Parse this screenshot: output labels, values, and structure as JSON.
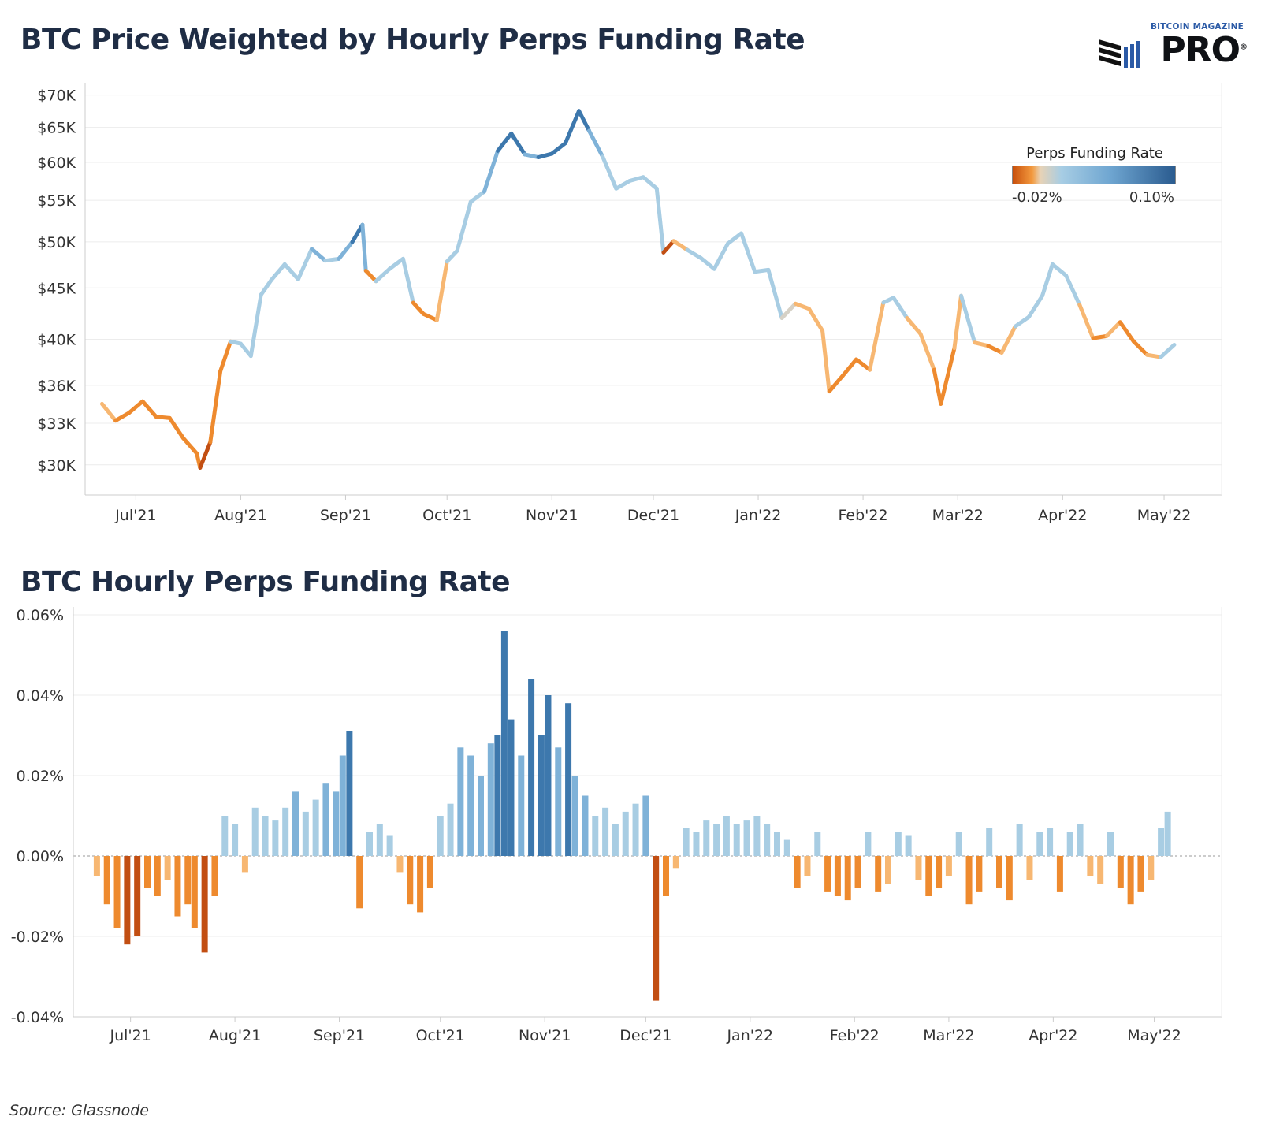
{
  "titles": {
    "top": "BTC Price Weighted by Hourly Perps Funding Rate",
    "bottom": "BTC Hourly Perps Funding Rate"
  },
  "logo": {
    "line1": "BITCOIN MAGAZINE",
    "line2": "PRO",
    "mark": "®"
  },
  "source": "Source: Glassnode",
  "legend": {
    "title": "Perps Funding Rate",
    "min_label": "-0.02%",
    "max_label": "0.10%"
  },
  "colors": {
    "neg_strong": "#c24e12",
    "neg_mid": "#ee8a2e",
    "neg_light": "#f7b772",
    "neutral": "#d6d1c6",
    "pos_light": "#a8cde3",
    "pos_mid": "#7fb2d8",
    "pos_strong": "#3d78ad",
    "grid": "#ececec",
    "axis": "#cccccc"
  },
  "chart_data": [
    {
      "type": "line",
      "title": "BTC Price Weighted by Hourly Perps Funding Rate",
      "color_by": "Perps Funding Rate",
      "scale": "log",
      "x_tick_labels": [
        "Jul'21",
        "Aug'21",
        "Sep'21",
        "Oct'21",
        "Nov'21",
        "Dec'21",
        "Jan'22",
        "Feb'22",
        "Mar'22",
        "Apr'22",
        "May'22"
      ],
      "y_ticks": [
        70000,
        65000,
        60000,
        55000,
        50000,
        45000,
        40000,
        36000,
        33000,
        30000
      ],
      "y_tick_labels": [
        "$70K",
        "$65K",
        "$60K",
        "$55K",
        "$50K",
        "$45K",
        "$40K",
        "$36K",
        "$33K",
        "$30K"
      ],
      "ylim": [
        28000,
        72000
      ],
      "x": [
        "2021-06-21",
        "2021-06-25",
        "2021-06-29",
        "2021-07-03",
        "2021-07-07",
        "2021-07-11",
        "2021-07-15",
        "2021-07-19",
        "2021-07-20",
        "2021-07-23",
        "2021-07-26",
        "2021-07-29",
        "2021-08-01",
        "2021-08-04",
        "2021-08-07",
        "2021-08-10",
        "2021-08-14",
        "2021-08-18",
        "2021-08-22",
        "2021-08-26",
        "2021-08-30",
        "2021-09-03",
        "2021-09-06",
        "2021-09-07",
        "2021-09-10",
        "2021-09-14",
        "2021-09-18",
        "2021-09-21",
        "2021-09-24",
        "2021-09-28",
        "2021-10-01",
        "2021-10-04",
        "2021-10-08",
        "2021-10-12",
        "2021-10-16",
        "2021-10-20",
        "2021-10-24",
        "2021-10-28",
        "2021-11-01",
        "2021-11-05",
        "2021-11-09",
        "2021-11-12",
        "2021-11-16",
        "2021-11-20",
        "2021-11-24",
        "2021-11-28",
        "2021-12-02",
        "2021-12-04",
        "2021-12-07",
        "2021-12-11",
        "2021-12-15",
        "2021-12-19",
        "2021-12-23",
        "2021-12-27",
        "2021-12-31",
        "2022-01-04",
        "2022-01-08",
        "2022-01-12",
        "2022-01-16",
        "2022-01-20",
        "2022-01-22",
        "2022-01-26",
        "2022-01-30",
        "2022-02-03",
        "2022-02-07",
        "2022-02-10",
        "2022-02-14",
        "2022-02-18",
        "2022-02-22",
        "2022-02-24",
        "2022-02-28",
        "2022-03-02",
        "2022-03-06",
        "2022-03-10",
        "2022-03-14",
        "2022-03-18",
        "2022-03-22",
        "2022-03-26",
        "2022-03-29",
        "2022-04-02",
        "2022-04-06",
        "2022-04-10",
        "2022-04-14",
        "2022-04-18",
        "2022-04-22",
        "2022-04-26",
        "2022-04-30",
        "2022-05-04"
      ],
      "values": [
        34500,
        33200,
        33800,
        34700,
        33500,
        33400,
        31900,
        30800,
        29800,
        31600,
        37200,
        39800,
        39600,
        38500,
        44300,
        45800,
        47500,
        45900,
        49200,
        47900,
        48100,
        50000,
        52000,
        46800,
        45700,
        47000,
        48100,
        43500,
        42400,
        41800,
        47800,
        49000,
        54800,
        56100,
        61600,
        64100,
        61100,
        60700,
        61200,
        62700,
        67500,
        64500,
        60800,
        56500,
        57500,
        58000,
        56500,
        48800,
        50100,
        49100,
        48200,
        47000,
        49800,
        51000,
        46700,
        46900,
        42000,
        43400,
        42900,
        40800,
        35500,
        36800,
        38200,
        37300,
        43500,
        44000,
        42000,
        40500,
        37300,
        34500,
        39200,
        44200,
        39700,
        39400,
        38800,
        41200,
        42100,
        44200,
        47500,
        46300,
        43300,
        40100,
        40300,
        41600,
        39800,
        38600,
        38400,
        39500
      ],
      "funding": [
        -0.005,
        -0.012,
        -0.008,
        -0.01,
        -0.012,
        -0.008,
        -0.015,
        -0.018,
        -0.022,
        -0.01,
        -0.018,
        0.005,
        0.008,
        0.006,
        0.009,
        0.01,
        0.012,
        0.01,
        0.015,
        0.013,
        0.02,
        0.03,
        0.025,
        -0.012,
        0.005,
        0.006,
        0.004,
        -0.01,
        -0.013,
        -0.006,
        0.01,
        0.008,
        0.012,
        0.025,
        0.03,
        0.05,
        0.025,
        0.04,
        0.03,
        0.035,
        0.038,
        0.025,
        0.01,
        0.008,
        0.012,
        0.01,
        0.008,
        -0.035,
        -0.004,
        0.006,
        0.008,
        0.007,
        0.006,
        0.008,
        0.006,
        0.004,
        0.002,
        -0.004,
        -0.006,
        -0.004,
        -0.01,
        -0.008,
        -0.008,
        -0.006,
        0.004,
        0.005,
        -0.006,
        -0.004,
        -0.01,
        -0.012,
        -0.006,
        0.006,
        -0.006,
        -0.008,
        -0.006,
        0.004,
        0.005,
        0.004,
        0.006,
        0.005,
        -0.004,
        -0.008,
        -0.006,
        -0.008,
        -0.01,
        -0.006,
        0.004,
        0.008
      ]
    },
    {
      "type": "bar",
      "title": "BTC Hourly Perps Funding Rate",
      "unit": "%",
      "x_tick_labels": [
        "Jul'21",
        "Aug'21",
        "Sep'21",
        "Oct'21",
        "Nov'21",
        "Dec'21",
        "Jan'22",
        "Feb'22",
        "Mar'22",
        "Apr'22",
        "May'22"
      ],
      "y_ticks": [
        0.06,
        0.04,
        0.02,
        0.0,
        -0.02,
        -0.04
      ],
      "y_tick_labels": [
        "0.06%",
        "0.04%",
        "0.02%",
        "0.00%",
        "-0.02%",
        "-0.04%"
      ],
      "ylim": [
        -0.04,
        0.06
      ],
      "zero_line": true,
      "x": [
        "2021-06-21",
        "2021-06-24",
        "2021-06-27",
        "2021-06-30",
        "2021-07-03",
        "2021-07-06",
        "2021-07-09",
        "2021-07-12",
        "2021-07-15",
        "2021-07-18",
        "2021-07-20",
        "2021-07-23",
        "2021-07-26",
        "2021-07-29",
        "2021-08-01",
        "2021-08-04",
        "2021-08-07",
        "2021-08-10",
        "2021-08-13",
        "2021-08-16",
        "2021-08-19",
        "2021-08-22",
        "2021-08-25",
        "2021-08-28",
        "2021-08-31",
        "2021-09-02",
        "2021-09-04",
        "2021-09-07",
        "2021-09-10",
        "2021-09-13",
        "2021-09-16",
        "2021-09-19",
        "2021-09-22",
        "2021-09-25",
        "2021-09-28",
        "2021-10-01",
        "2021-10-04",
        "2021-10-07",
        "2021-10-10",
        "2021-10-13",
        "2021-10-16",
        "2021-10-18",
        "2021-10-20",
        "2021-10-22",
        "2021-10-25",
        "2021-10-28",
        "2021-10-31",
        "2021-11-02",
        "2021-11-05",
        "2021-11-08",
        "2021-11-10",
        "2021-11-13",
        "2021-11-16",
        "2021-11-19",
        "2021-11-22",
        "2021-11-25",
        "2021-11-28",
        "2021-12-01",
        "2021-12-04",
        "2021-12-07",
        "2021-12-10",
        "2021-12-13",
        "2021-12-16",
        "2021-12-19",
        "2021-12-22",
        "2021-12-25",
        "2021-12-28",
        "2021-12-31",
        "2022-01-03",
        "2022-01-06",
        "2022-01-09",
        "2022-01-12",
        "2022-01-15",
        "2022-01-18",
        "2022-01-21",
        "2022-01-24",
        "2022-01-27",
        "2022-01-30",
        "2022-02-02",
        "2022-02-05",
        "2022-02-08",
        "2022-02-11",
        "2022-02-14",
        "2022-02-17",
        "2022-02-20",
        "2022-02-23",
        "2022-02-26",
        "2022-03-01",
        "2022-03-04",
        "2022-03-07",
        "2022-03-10",
        "2022-03-13",
        "2022-03-16",
        "2022-03-19",
        "2022-03-22",
        "2022-03-25",
        "2022-03-28",
        "2022-03-31",
        "2022-04-03",
        "2022-04-06",
        "2022-04-09",
        "2022-04-12",
        "2022-04-15",
        "2022-04-18",
        "2022-04-21",
        "2022-04-24",
        "2022-04-27",
        "2022-04-30",
        "2022-05-03",
        "2022-05-05"
      ],
      "values": [
        -0.005,
        -0.012,
        -0.018,
        -0.022,
        -0.02,
        -0.008,
        -0.01,
        -0.006,
        -0.015,
        -0.012,
        -0.018,
        -0.024,
        -0.01,
        0.01,
        0.008,
        -0.004,
        0.012,
        0.01,
        0.009,
        0.012,
        0.016,
        0.011,
        0.014,
        0.018,
        0.016,
        0.025,
        0.031,
        -0.013,
        0.006,
        0.008,
        0.005,
        -0.004,
        -0.012,
        -0.014,
        -0.008,
        0.01,
        0.013,
        0.027,
        0.025,
        0.02,
        0.028,
        0.03,
        0.056,
        0.034,
        0.025,
        0.044,
        0.03,
        0.04,
        0.027,
        0.038,
        0.02,
        0.015,
        0.01,
        0.012,
        0.008,
        0.011,
        0.013,
        0.015,
        -0.036,
        -0.01,
        -0.003,
        0.007,
        0.006,
        0.009,
        0.008,
        0.01,
        0.008,
        0.009,
        0.01,
        0.008,
        0.006,
        0.004,
        -0.008,
        -0.005,
        0.006,
        -0.009,
        -0.01,
        -0.011,
        -0.008,
        0.006,
        -0.009,
        -0.007,
        0.006,
        0.005,
        -0.006,
        -0.01,
        -0.008,
        -0.005,
        0.006,
        -0.012,
        -0.009,
        0.007,
        -0.008,
        -0.011,
        0.008,
        -0.006,
        0.006,
        0.007,
        -0.009,
        0.006,
        0.008,
        -0.005,
        -0.007,
        0.006,
        -0.008,
        -0.012,
        -0.009,
        -0.006,
        0.007,
        0.011
      ]
    }
  ]
}
